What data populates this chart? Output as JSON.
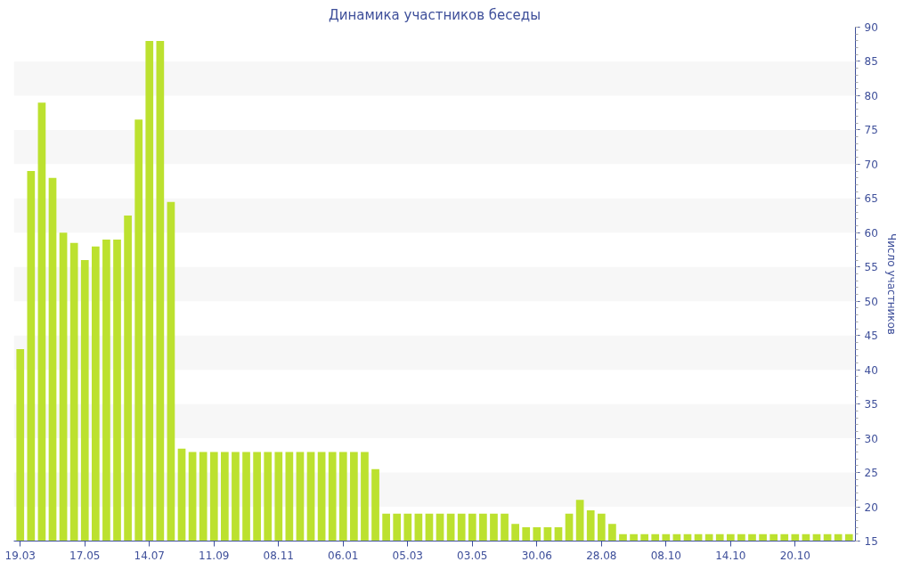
{
  "chart_data": {
    "type": "bar",
    "title": "Динамика участников беседы",
    "ylabel": "Число участников",
    "categories": [
      "19.03",
      null,
      null,
      null,
      null,
      null,
      "17.05",
      null,
      null,
      null,
      null,
      null,
      "14.07",
      null,
      null,
      null,
      null,
      null,
      "11.09",
      null,
      null,
      null,
      null,
      null,
      "08.11",
      null,
      null,
      null,
      null,
      null,
      "06.01",
      null,
      null,
      null,
      null,
      null,
      "05.03",
      null,
      null,
      null,
      null,
      null,
      "03.05",
      null,
      null,
      null,
      null,
      null,
      "30.06",
      null,
      null,
      null,
      null,
      null,
      "28.08",
      null,
      null,
      null,
      null,
      null,
      "08.10",
      null,
      null,
      null,
      null,
      null,
      "14.10",
      null,
      null,
      null,
      null,
      null,
      "20.10",
      null,
      null,
      null,
      null,
      null
    ],
    "values": [
      43,
      69,
      79,
      68,
      60,
      58.5,
      56,
      58,
      59,
      59,
      62.5,
      76.5,
      88,
      88,
      64.5,
      28.5,
      28,
      28,
      28,
      28,
      28,
      28,
      28,
      28,
      28,
      28,
      28,
      28,
      28,
      28,
      28,
      28,
      28,
      25.5,
      19,
      19,
      19,
      19,
      19,
      19,
      19,
      19,
      19,
      19,
      19,
      19,
      17.5,
      17,
      17,
      17,
      17,
      19,
      21,
      19.5,
      19,
      17.5,
      16,
      16,
      16,
      16,
      16,
      16,
      16,
      16,
      16,
      16,
      16,
      16,
      16,
      16,
      16,
      16,
      16,
      16,
      16,
      16,
      16,
      16
    ],
    "color": "#bce12f",
    "ylim": [
      15,
      90
    ],
    "yticks": [
      15,
      20,
      25,
      30,
      35,
      40,
      45,
      50,
      55,
      60,
      65,
      70,
      75,
      80,
      85,
      90
    ],
    "bands": [
      {
        "axis": "y",
        "from": 20,
        "to": 25,
        "color": "#f7f7f7"
      },
      {
        "axis": "y",
        "from": 30,
        "to": 35,
        "color": "#f7f7f7"
      },
      {
        "axis": "y",
        "from": 40,
        "to": 45,
        "color": "#f7f7f7"
      },
      {
        "axis": "y",
        "from": 50,
        "to": 55,
        "color": "#f7f7f7"
      },
      {
        "axis": "y",
        "from": 60,
        "to": 65,
        "color": "#f7f7f7"
      },
      {
        "axis": "y",
        "from": 70,
        "to": 75,
        "color": "#f7f7f7"
      },
      {
        "axis": "y",
        "from": 80,
        "to": 85,
        "color": "#f7f7f7"
      }
    ]
  }
}
